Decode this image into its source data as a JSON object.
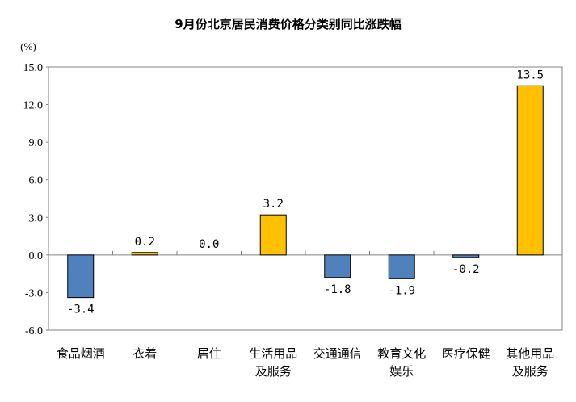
{
  "chart_data": {
    "type": "bar",
    "title": "9月份北京居民消费价格分类别同比涨跌幅",
    "ylabel": "(%)",
    "xlabel": "",
    "categories": [
      [
        "食品烟酒"
      ],
      [
        "衣着"
      ],
      [
        "居住"
      ],
      [
        "生活用品",
        "及服务"
      ],
      [
        "交通通信"
      ],
      [
        "教育文化",
        "娱乐"
      ],
      [
        "医疗保健"
      ],
      [
        "其他用品",
        "及服务"
      ]
    ],
    "values": [
      -3.4,
      0.2,
      0.0,
      3.2,
      -1.8,
      -1.9,
      -0.2,
      13.5
    ],
    "data_labels": [
      "-3.4",
      "0.2",
      "0.0",
      "3.2",
      "-1.8",
      "-1.9",
      "-0.2",
      "13.5"
    ],
    "ylim": [
      -6.0,
      15.0
    ],
    "yticks": [
      "15.0",
      "12.0",
      "9.0",
      "6.0",
      "3.0",
      "0.0",
      "-3.0",
      "-6.0"
    ],
    "grid": false,
    "colors": {
      "positive": "#FFC000",
      "negative": "#4F81BD"
    }
  }
}
